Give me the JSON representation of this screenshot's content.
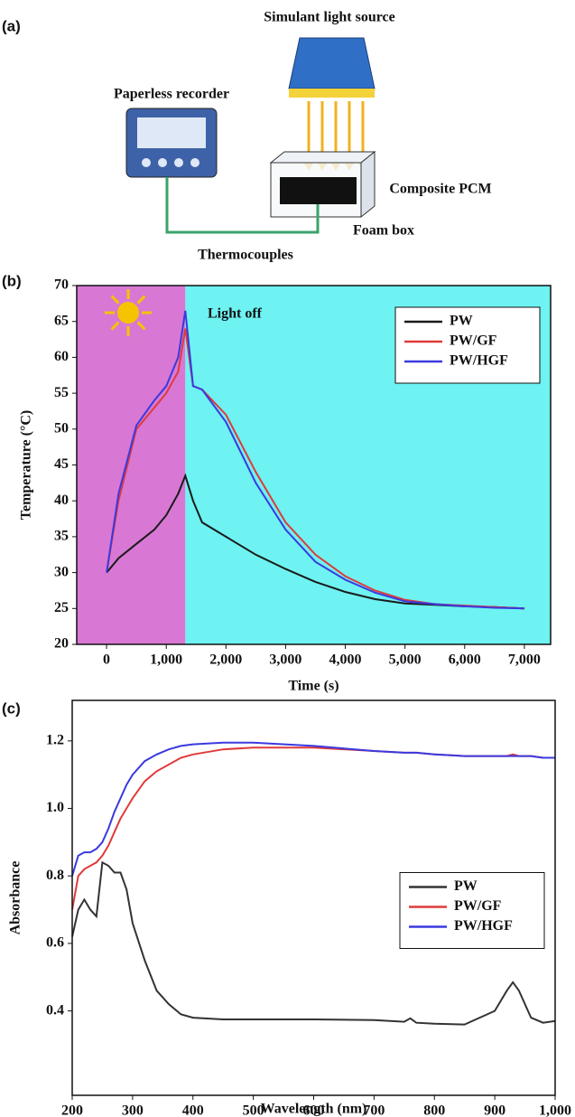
{
  "panel_labels": [
    "(a)",
    "(b)",
    "(c)"
  ],
  "diagram": {
    "light_source": "Simulant light source",
    "recorder": "Paperless recorder",
    "pcm": "Composite PCM",
    "foam_box": "Foam box",
    "thermocouples": "Thermocouples"
  },
  "chart_data": [
    {
      "type": "line",
      "xlabel": "Time (s)",
      "ylabel": "Temperature (°C)",
      "annotation": "Light off",
      "x": [
        0,
        200,
        500,
        800,
        1000,
        1200,
        1320,
        1450,
        1600,
        2000,
        2500,
        3000,
        3500,
        4000,
        4500,
        5000,
        5500,
        6000,
        6500,
        7000
      ],
      "series": [
        {
          "name": "PW",
          "color": "#1a1a1a",
          "values": [
            30,
            32,
            34,
            36,
            38,
            41,
            43.5,
            40,
            37,
            35,
            32.5,
            30.5,
            28.7,
            27.3,
            26.3,
            25.7,
            25.5,
            25.3,
            25.2,
            25
          ]
        },
        {
          "name": "PW/GF",
          "color": "#e03a3a",
          "values": [
            30,
            40,
            50,
            53,
            55,
            58,
            64,
            56,
            55.5,
            52,
            44,
            37,
            32.5,
            29.5,
            27.5,
            26.2,
            25.6,
            25.4,
            25.2,
            25
          ]
        },
        {
          "name": "PW/HGF",
          "color": "#3a3adf",
          "values": [
            30,
            41,
            50.5,
            54,
            56,
            60,
            66.5,
            56,
            55.5,
            51,
            42.5,
            36,
            31.5,
            29,
            27.2,
            26,
            25.6,
            25.3,
            25.1,
            25
          ]
        }
      ],
      "xlim": [
        -500,
        7440
      ],
      "ylim": [
        20,
        70
      ],
      "xticks": [
        0,
        {
          "value": 1000,
          "label": "1,000"
        },
        {
          "value": 2000,
          "label": "2,000"
        },
        {
          "value": 3000,
          "label": "3,000"
        },
        {
          "value": 4000,
          "label": "4,000"
        },
        {
          "value": 5000,
          "label": "5,000"
        },
        {
          "value": 6000,
          "label": "6,000"
        },
        {
          "value": 7000,
          "label": "7,000"
        }
      ],
      "yticks": [
        20,
        25,
        30,
        35,
        40,
        45,
        50,
        55,
        60,
        65,
        70
      ],
      "shaded_regions": [
        {
          "from": -500,
          "to": 1320,
          "color": "#d878d4"
        },
        {
          "from": 1320,
          "to": 7440,
          "color": "#6ef2f2"
        }
      ],
      "legend": "upper right",
      "grid": false
    },
    {
      "type": "line",
      "xlabel": "Wavelength (nm)",
      "ylabel": "Absorbance",
      "x": [
        200,
        210,
        220,
        230,
        240,
        250,
        260,
        270,
        280,
        290,
        300,
        320,
        340,
        360,
        380,
        400,
        450,
        500,
        600,
        700,
        750,
        760,
        770,
        800,
        850,
        900,
        920,
        930,
        940,
        960,
        980,
        1000
      ],
      "series": [
        {
          "name": "PW",
          "color": "#333333",
          "values": [
            0.62,
            0.7,
            0.73,
            0.7,
            0.68,
            0.84,
            0.83,
            0.81,
            0.81,
            0.76,
            0.66,
            0.55,
            0.46,
            0.42,
            0.39,
            0.38,
            0.375,
            0.375,
            0.375,
            0.373,
            0.368,
            0.378,
            0.365,
            0.362,
            0.36,
            0.4,
            0.46,
            0.485,
            0.46,
            0.38,
            0.365,
            0.37
          ]
        },
        {
          "name": "PW/GF",
          "color": "#e03a3a",
          "values": [
            0.7,
            0.8,
            0.82,
            0.83,
            0.84,
            0.86,
            0.89,
            0.93,
            0.97,
            1.0,
            1.03,
            1.08,
            1.11,
            1.13,
            1.15,
            1.16,
            1.175,
            1.18,
            1.18,
            1.17,
            1.165,
            1.165,
            1.165,
            1.16,
            1.155,
            1.155,
            1.155,
            1.16,
            1.155,
            1.155,
            1.15,
            1.15
          ]
        },
        {
          "name": "PW/HGF",
          "color": "#3a3adf",
          "values": [
            0.8,
            0.86,
            0.87,
            0.87,
            0.88,
            0.9,
            0.94,
            0.99,
            1.03,
            1.07,
            1.1,
            1.14,
            1.16,
            1.175,
            1.185,
            1.19,
            1.195,
            1.195,
            1.185,
            1.17,
            1.165,
            1.165,
            1.165,
            1.16,
            1.155,
            1.155,
            1.155,
            1.155,
            1.155,
            1.155,
            1.15,
            1.15
          ]
        }
      ],
      "xlim": [
        200,
        1000
      ],
      "ylim": [
        0.15,
        1.32
      ],
      "xticks": [
        200,
        300,
        400,
        500,
        600,
        700,
        800,
        900,
        {
          "value": 1000,
          "label": "1,000"
        }
      ],
      "yticks": [
        0.4,
        0.6,
        0.8,
        {
          "value": 1,
          "label": "1.0"
        },
        1.2
      ],
      "legend": "center right",
      "grid": false
    }
  ]
}
